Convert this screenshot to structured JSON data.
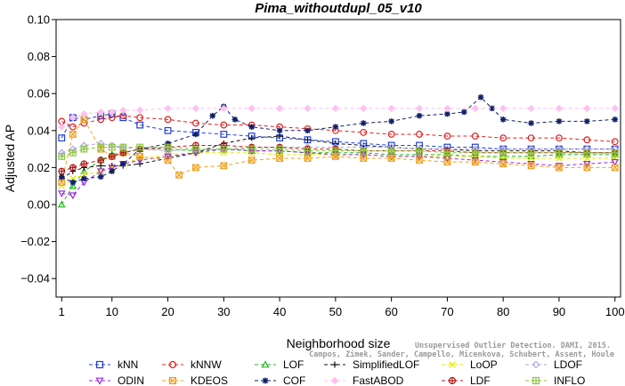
{
  "chart_data": {
    "type": "line",
    "title": "Pima_withoutdupl_05_v10",
    "xlabel": "Neighborhood size",
    "ylabel": "Adjusted AP",
    "xlim": [
      0,
      101
    ],
    "ylim": [
      -0.05,
      0.1
    ],
    "x_ticks": [
      1,
      10,
      20,
      30,
      40,
      50,
      60,
      70,
      80,
      90,
      100
    ],
    "y_ticks": [
      -0.04,
      -0.02,
      0.0,
      0.02,
      0.04,
      0.06,
      0.08,
      0.1
    ],
    "x_tick_labels": [
      "1",
      "10",
      "20",
      "30",
      "40",
      "50",
      "60",
      "70",
      "80",
      "90",
      "100"
    ],
    "y_tick_labels": [
      "−0.04",
      "−0.02",
      "0.00",
      "0.02",
      "0.04",
      "0.06",
      "0.08",
      "0.10"
    ],
    "legend_position": "bottom",
    "grid": false,
    "series": [
      {
        "name": "kNN",
        "color": "#1f3fd6",
        "marker": "square",
        "points": [
          [
            1,
            0.036
          ],
          [
            3,
            0.047
          ],
          [
            5,
            0.046
          ],
          [
            8,
            0.048
          ],
          [
            10,
            0.049
          ],
          [
            12,
            0.047
          ],
          [
            15,
            0.043
          ],
          [
            20,
            0.04
          ],
          [
            25,
            0.039
          ],
          [
            30,
            0.038
          ],
          [
            35,
            0.037
          ],
          [
            40,
            0.036
          ],
          [
            45,
            0.035
          ],
          [
            50,
            0.034
          ],
          [
            55,
            0.033
          ],
          [
            60,
            0.032
          ],
          [
            65,
            0.032
          ],
          [
            70,
            0.031
          ],
          [
            75,
            0.031
          ],
          [
            80,
            0.03
          ],
          [
            85,
            0.03
          ],
          [
            90,
            0.03
          ],
          [
            95,
            0.03
          ],
          [
            100,
            0.03
          ]
        ]
      },
      {
        "name": "kNNW",
        "color": "#e02020",
        "marker": "circle",
        "points": [
          [
            1,
            0.045
          ],
          [
            3,
            0.042
          ],
          [
            5,
            0.044
          ],
          [
            8,
            0.046
          ],
          [
            10,
            0.047
          ],
          [
            12,
            0.048
          ],
          [
            15,
            0.047
          ],
          [
            20,
            0.046
          ],
          [
            25,
            0.044
          ],
          [
            30,
            0.043
          ],
          [
            35,
            0.043
          ],
          [
            40,
            0.042
          ],
          [
            45,
            0.041
          ],
          [
            50,
            0.04
          ],
          [
            55,
            0.039
          ],
          [
            60,
            0.038
          ],
          [
            65,
            0.038
          ],
          [
            70,
            0.037
          ],
          [
            75,
            0.037
          ],
          [
            80,
            0.036
          ],
          [
            85,
            0.036
          ],
          [
            90,
            0.036
          ],
          [
            95,
            0.035
          ],
          [
            100,
            0.034
          ]
        ]
      },
      {
        "name": "LOF",
        "color": "#22b522",
        "marker": "triangle-up",
        "points": [
          [
            1,
            0.0
          ],
          [
            3,
            0.01
          ],
          [
            5,
            0.018
          ],
          [
            8,
            0.024
          ],
          [
            10,
            0.027
          ],
          [
            12,
            0.028
          ],
          [
            15,
            0.03
          ],
          [
            20,
            0.03
          ],
          [
            25,
            0.029
          ],
          [
            30,
            0.03
          ],
          [
            35,
            0.029
          ],
          [
            40,
            0.029
          ],
          [
            45,
            0.028
          ],
          [
            50,
            0.028
          ],
          [
            55,
            0.028
          ],
          [
            60,
            0.027
          ],
          [
            65,
            0.027
          ],
          [
            70,
            0.027
          ],
          [
            75,
            0.026
          ],
          [
            80,
            0.026
          ],
          [
            85,
            0.026
          ],
          [
            90,
            0.027
          ],
          [
            95,
            0.027
          ],
          [
            100,
            0.027
          ]
        ]
      },
      {
        "name": "SimplifiedLOF",
        "color": "#111111",
        "marker": "plus",
        "points": [
          [
            1,
            0.014
          ],
          [
            3,
            0.018
          ],
          [
            5,
            0.02
          ],
          [
            8,
            0.021
          ],
          [
            10,
            0.021
          ],
          [
            12,
            0.021
          ],
          [
            15,
            0.022
          ],
          [
            20,
            0.025
          ],
          [
            25,
            0.028
          ],
          [
            30,
            0.033
          ],
          [
            35,
            0.036
          ],
          [
            40,
            0.037
          ],
          [
            45,
            0.035
          ],
          [
            50,
            0.033
          ],
          [
            55,
            0.032
          ],
          [
            60,
            0.031
          ],
          [
            65,
            0.03
          ],
          [
            70,
            0.03
          ],
          [
            75,
            0.029
          ],
          [
            80,
            0.029
          ],
          [
            85,
            0.029
          ],
          [
            90,
            0.029
          ],
          [
            95,
            0.028
          ],
          [
            100,
            0.028
          ]
        ]
      },
      {
        "name": "LoOP",
        "color": "#e6e600",
        "marker": "x",
        "points": [
          [
            1,
            0.01
          ],
          [
            3,
            0.014
          ],
          [
            5,
            0.016
          ],
          [
            8,
            0.018
          ],
          [
            10,
            0.02
          ],
          [
            12,
            0.022
          ],
          [
            15,
            0.025
          ],
          [
            20,
            0.027
          ],
          [
            25,
            0.028
          ],
          [
            30,
            0.028
          ],
          [
            35,
            0.028
          ],
          [
            40,
            0.027
          ],
          [
            45,
            0.027
          ],
          [
            50,
            0.027
          ],
          [
            55,
            0.027
          ],
          [
            60,
            0.026
          ],
          [
            65,
            0.026
          ],
          [
            70,
            0.026
          ],
          [
            75,
            0.026
          ],
          [
            80,
            0.025
          ],
          [
            85,
            0.025
          ],
          [
            90,
            0.025
          ],
          [
            95,
            0.025
          ],
          [
            100,
            0.025
          ]
        ]
      },
      {
        "name": "LDOF",
        "color": "#b0a8e0",
        "marker": "diamond",
        "points": [
          [
            1,
            0.028
          ],
          [
            3,
            0.03
          ],
          [
            5,
            0.032
          ],
          [
            8,
            0.033
          ],
          [
            10,
            0.032
          ],
          [
            12,
            0.031
          ],
          [
            15,
            0.03
          ],
          [
            20,
            0.029
          ],
          [
            25,
            0.03
          ],
          [
            30,
            0.03
          ],
          [
            35,
            0.031
          ],
          [
            40,
            0.031
          ],
          [
            45,
            0.031
          ],
          [
            50,
            0.031
          ],
          [
            55,
            0.031
          ],
          [
            60,
            0.031
          ],
          [
            65,
            0.03
          ],
          [
            70,
            0.03
          ],
          [
            75,
            0.03
          ],
          [
            80,
            0.03
          ],
          [
            85,
            0.03
          ],
          [
            90,
            0.03
          ],
          [
            95,
            0.03
          ],
          [
            100,
            0.03
          ]
        ]
      },
      {
        "name": "ODIN",
        "color": "#9a2ae0",
        "marker": "triangle-down",
        "points": [
          [
            1,
            0.006
          ],
          [
            3,
            0.005
          ],
          [
            5,
            0.012
          ],
          [
            8,
            0.018
          ],
          [
            10,
            0.02
          ],
          [
            12,
            0.022
          ],
          [
            15,
            0.024
          ],
          [
            20,
            0.026
          ],
          [
            25,
            0.028
          ],
          [
            30,
            0.03
          ],
          [
            35,
            0.029
          ],
          [
            40,
            0.029
          ],
          [
            45,
            0.028
          ],
          [
            50,
            0.027
          ],
          [
            55,
            0.027
          ],
          [
            60,
            0.026
          ],
          [
            65,
            0.026
          ],
          [
            70,
            0.025
          ],
          [
            75,
            0.024
          ],
          [
            80,
            0.023
          ],
          [
            85,
            0.022
          ],
          [
            90,
            0.021
          ],
          [
            95,
            0.022
          ],
          [
            100,
            0.023
          ]
        ]
      },
      {
        "name": "KDEOS",
        "color": "#f0a020",
        "marker": "x-square",
        "points": [
          [
            1,
            0.012
          ],
          [
            3,
            0.038
          ],
          [
            5,
            0.046
          ],
          [
            8,
            0.03
          ],
          [
            10,
            0.026
          ],
          [
            12,
            0.028
          ],
          [
            15,
            0.026
          ],
          [
            20,
            0.024
          ],
          [
            22,
            0.016
          ],
          [
            25,
            0.02
          ],
          [
            30,
            0.021
          ],
          [
            35,
            0.024
          ],
          [
            40,
            0.025
          ],
          [
            45,
            0.025
          ],
          [
            50,
            0.026
          ],
          [
            55,
            0.025
          ],
          [
            60,
            0.025
          ],
          [
            65,
            0.024
          ],
          [
            70,
            0.023
          ],
          [
            75,
            0.023
          ],
          [
            80,
            0.022
          ],
          [
            85,
            0.021
          ],
          [
            90,
            0.02
          ],
          [
            95,
            0.02
          ],
          [
            100,
            0.02
          ]
        ]
      },
      {
        "name": "COF",
        "color": "#12206a",
        "marker": "asterisk",
        "points": [
          [
            1,
            0.015
          ],
          [
            3,
            0.012
          ],
          [
            5,
            0.014
          ],
          [
            8,
            0.015
          ],
          [
            10,
            0.018
          ],
          [
            12,
            0.022
          ],
          [
            15,
            0.03
          ],
          [
            20,
            0.033
          ],
          [
            25,
            0.038
          ],
          [
            28,
            0.048
          ],
          [
            30,
            0.053
          ],
          [
            32,
            0.046
          ],
          [
            35,
            0.042
          ],
          [
            40,
            0.04
          ],
          [
            45,
            0.04
          ],
          [
            50,
            0.042
          ],
          [
            55,
            0.044
          ],
          [
            60,
            0.045
          ],
          [
            65,
            0.048
          ],
          [
            70,
            0.049
          ],
          [
            73,
            0.05
          ],
          [
            76,
            0.058
          ],
          [
            78,
            0.052
          ],
          [
            80,
            0.046
          ],
          [
            85,
            0.044
          ],
          [
            90,
            0.045
          ],
          [
            95,
            0.045
          ],
          [
            100,
            0.046
          ]
        ]
      },
      {
        "name": "FastABOD",
        "color": "#ffc0f0",
        "marker": "diamond-filled",
        "points": [
          [
            1,
            0.042
          ],
          [
            3,
            0.047
          ],
          [
            5,
            0.049
          ],
          [
            8,
            0.05
          ],
          [
            10,
            0.05
          ],
          [
            12,
            0.051
          ],
          [
            15,
            0.051
          ],
          [
            20,
            0.052
          ],
          [
            25,
            0.052
          ],
          [
            30,
            0.052
          ],
          [
            35,
            0.052
          ],
          [
            40,
            0.052
          ],
          [
            45,
            0.052
          ],
          [
            50,
            0.052
          ],
          [
            55,
            0.052
          ],
          [
            60,
            0.052
          ],
          [
            65,
            0.052
          ],
          [
            70,
            0.052
          ],
          [
            75,
            0.052
          ],
          [
            80,
            0.052
          ],
          [
            85,
            0.052
          ],
          [
            90,
            0.052
          ],
          [
            95,
            0.052
          ],
          [
            100,
            0.052
          ]
        ]
      },
      {
        "name": "LDF",
        "color": "#b01818",
        "marker": "circle-plus",
        "points": [
          [
            1,
            0.018
          ],
          [
            3,
            0.02
          ],
          [
            5,
            0.022
          ],
          [
            8,
            0.024
          ],
          [
            10,
            0.026
          ],
          [
            12,
            0.028
          ],
          [
            15,
            0.03
          ],
          [
            20,
            0.031
          ],
          [
            25,
            0.032
          ],
          [
            30,
            0.032
          ],
          [
            35,
            0.031
          ],
          [
            40,
            0.031
          ],
          [
            45,
            0.03
          ],
          [
            50,
            0.03
          ],
          [
            55,
            0.029
          ],
          [
            60,
            0.029
          ],
          [
            65,
            0.029
          ],
          [
            70,
            0.029
          ],
          [
            75,
            0.028
          ],
          [
            80,
            0.028
          ],
          [
            85,
            0.028
          ],
          [
            90,
            0.028
          ],
          [
            95,
            0.028
          ],
          [
            100,
            0.028
          ]
        ]
      },
      {
        "name": "INFLO",
        "color": "#8cc83c",
        "marker": "square-x",
        "points": [
          [
            1,
            0.026
          ],
          [
            3,
            0.028
          ],
          [
            5,
            0.03
          ],
          [
            8,
            0.031
          ],
          [
            10,
            0.031
          ],
          [
            12,
            0.031
          ],
          [
            15,
            0.031
          ],
          [
            20,
            0.031
          ],
          [
            25,
            0.03
          ],
          [
            30,
            0.03
          ],
          [
            35,
            0.03
          ],
          [
            40,
            0.03
          ],
          [
            45,
            0.029
          ],
          [
            50,
            0.029
          ],
          [
            55,
            0.029
          ],
          [
            60,
            0.029
          ],
          [
            65,
            0.029
          ],
          [
            70,
            0.028
          ],
          [
            75,
            0.028
          ],
          [
            80,
            0.028
          ],
          [
            85,
            0.028
          ],
          [
            90,
            0.028
          ],
          [
            95,
            0.028
          ],
          [
            100,
            0.028
          ]
        ]
      }
    ]
  },
  "watermark": {
    "line1": "Unsupervised Outlier Detection. DAMI, 2015.",
    "line2": "Campos, Zimek, Sander, Campello, Micenkova, Schubert, Assent, Houle"
  }
}
